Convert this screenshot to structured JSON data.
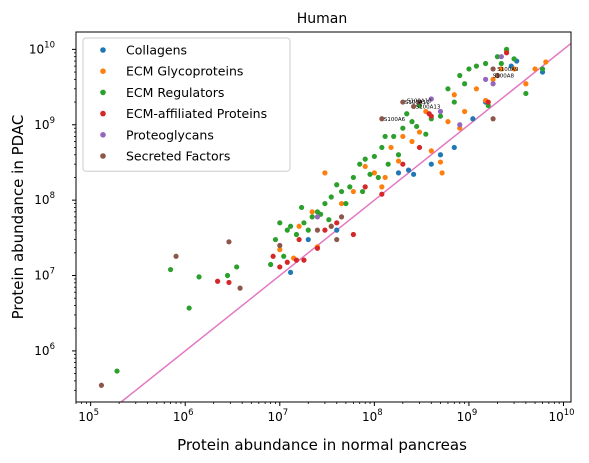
{
  "chart_data": {
    "type": "scatter",
    "title": "Human",
    "xlabel": "Protein abundance in normal pancreas",
    "ylabel": "Protein abundance in PDAC",
    "xscale": "log",
    "yscale": "log",
    "xlim": [
      70000,
      12000000000
    ],
    "ylim": [
      210000,
      17000000000
    ],
    "x_ticks": [
      {
        "value": 100000,
        "base": "10",
        "exp": "5"
      },
      {
        "value": 1000000,
        "base": "10",
        "exp": "6"
      },
      {
        "value": 10000000,
        "base": "10",
        "exp": "7"
      },
      {
        "value": 100000000,
        "base": "10",
        "exp": "8"
      },
      {
        "value": 1000000000,
        "base": "10",
        "exp": "9"
      },
      {
        "value": 10000000000,
        "base": "10",
        "exp": "10"
      }
    ],
    "y_ticks": [
      {
        "value": 1000000,
        "base": "10",
        "exp": "6"
      },
      {
        "value": 10000000,
        "base": "10",
        "exp": "7"
      },
      {
        "value": 100000000,
        "base": "10",
        "exp": "8"
      },
      {
        "value": 1000000000,
        "base": "10",
        "exp": "9"
      },
      {
        "value": 10000000000,
        "base": "10",
        "exp": "10"
      }
    ],
    "grid": false,
    "legend_position": "top-left",
    "reference_line": {
      "type": "y=x",
      "color": "#e377c2"
    },
    "series": [
      {
        "name": "Collagens",
        "color": "#1f77b4",
        "points": [
          [
            13000000,
            11000000
          ],
          [
            20000000,
            30000000
          ],
          [
            40000000,
            40000000
          ],
          [
            180000000,
            230000000
          ],
          [
            230000000,
            250000000
          ],
          [
            500000000,
            400000000
          ],
          [
            700000000,
            500000000
          ],
          [
            1500000000,
            2000000000
          ],
          [
            2800000000,
            6000000000
          ],
          [
            3200000000,
            7000000000
          ],
          [
            6000000000,
            5000000000
          ],
          [
            400000000,
            300000000
          ],
          [
            1100000000,
            1200000000
          ],
          [
            260000000,
            220000000
          ]
        ]
      },
      {
        "name": "ECM Glycoproteins",
        "color": "#ff7f0e",
        "points": [
          [
            10000000,
            22000000
          ],
          [
            14000000,
            17000000
          ],
          [
            22000000,
            70000000
          ],
          [
            25000000,
            24000000
          ],
          [
            30000000,
            230000000
          ],
          [
            35000000,
            45000000
          ],
          [
            60000000,
            130000000
          ],
          [
            80000000,
            280000000
          ],
          [
            100000000,
            230000000
          ],
          [
            130000000,
            200000000
          ],
          [
            150000000,
            500000000
          ],
          [
            180000000,
            330000000
          ],
          [
            200000000,
            700000000
          ],
          [
            300000000,
            800000000
          ],
          [
            400000000,
            450000000
          ],
          [
            500000000,
            320000000
          ],
          [
            520000000,
            230000000
          ],
          [
            700000000,
            2500000000
          ],
          [
            900000000,
            1500000000
          ],
          [
            1200000000,
            3000000000
          ],
          [
            1500000000,
            2100000000
          ],
          [
            1800000000,
            4000000000
          ],
          [
            2000000000,
            4500000000
          ],
          [
            2200000000,
            5500000000
          ],
          [
            2500000000,
            9500000000
          ],
          [
            3000000000,
            5500000000
          ],
          [
            5000000000,
            5500000000
          ],
          [
            6500000000,
            6800000000
          ],
          [
            4000000000,
            3500000000
          ],
          [
            800000000,
            900000000
          ],
          [
            350000000,
            1500000000
          ],
          [
            120000000,
            150000000
          ],
          [
            45000000,
            90000000
          ],
          [
            16000000,
            45000000
          ],
          [
            250000000,
            600000000
          ],
          [
            600000000,
            1100000000
          ]
        ]
      },
      {
        "name": "ECM Regulators",
        "color": "#2ca02c",
        "points": [
          [
            190000,
            540000
          ],
          [
            700000,
            12000000
          ],
          [
            1100000,
            3700000
          ],
          [
            1400000,
            9600000
          ],
          [
            2800000,
            10000000
          ],
          [
            3500000,
            13000000
          ],
          [
            8000000,
            14000000
          ],
          [
            10000000,
            50000000
          ],
          [
            12000000,
            40000000
          ],
          [
            15000000,
            35000000
          ],
          [
            18000000,
            50000000
          ],
          [
            22000000,
            60000000
          ],
          [
            25000000,
            70000000
          ],
          [
            30000000,
            90000000
          ],
          [
            35000000,
            110000000
          ],
          [
            40000000,
            160000000
          ],
          [
            45000000,
            130000000
          ],
          [
            50000000,
            90000000
          ],
          [
            60000000,
            200000000
          ],
          [
            70000000,
            300000000
          ],
          [
            80000000,
            350000000
          ],
          [
            90000000,
            220000000
          ],
          [
            100000000,
            380000000
          ],
          [
            120000000,
            500000000
          ],
          [
            140000000,
            300000000
          ],
          [
            160000000,
            700000000
          ],
          [
            200000000,
            900000000
          ],
          [
            250000000,
            1100000000
          ],
          [
            300000000,
            1800000000
          ],
          [
            400000000,
            1200000000
          ],
          [
            500000000,
            1300000000
          ],
          [
            600000000,
            3000000000
          ],
          [
            800000000,
            4500000000
          ],
          [
            1000000000,
            5500000000
          ],
          [
            1200000000,
            6000000000
          ],
          [
            1500000000,
            6500000000
          ],
          [
            2000000000,
            8000000000
          ],
          [
            2500000000,
            10000000000
          ],
          [
            3000000000,
            7500000000
          ],
          [
            4000000000,
            2600000000
          ],
          [
            6000000000,
            5500000000
          ],
          [
            13000000,
            45000000
          ],
          [
            17000000,
            80000000
          ],
          [
            27000000,
            65000000
          ],
          [
            33000000,
            55000000
          ],
          [
            55000000,
            150000000
          ],
          [
            75000000,
            130000000
          ],
          [
            110000000,
            200000000
          ],
          [
            130000000,
            700000000
          ],
          [
            180000000,
            400000000
          ],
          [
            220000000,
            1400000000
          ],
          [
            280000000,
            950000000
          ],
          [
            350000000,
            750000000
          ],
          [
            700000000,
            2000000000
          ],
          [
            900000000,
            3500000000
          ],
          [
            1600000000,
            1800000000
          ],
          [
            2200000000,
            6500000000
          ],
          [
            9000000,
            30000000
          ],
          [
            11000000,
            18000000
          ],
          [
            20000000,
            40000000
          ]
        ]
      },
      {
        "name": "ECM-affiliated Proteins",
        "color": "#d62728",
        "points": [
          [
            2200000,
            8400000
          ],
          [
            2900000,
            8100000
          ],
          [
            8500000,
            18000000
          ],
          [
            10000000,
            13000000
          ],
          [
            12000000,
            15000000
          ],
          [
            15000000,
            16000000
          ],
          [
            18000000,
            16000000
          ],
          [
            25000000,
            23000000
          ],
          [
            30000000,
            40000000
          ],
          [
            40000000,
            50000000
          ],
          [
            60000000,
            35000000
          ],
          [
            80000000,
            150000000
          ],
          [
            120000000,
            120000000
          ],
          [
            200000000,
            300000000
          ],
          [
            300000000,
            500000000
          ],
          [
            380000000,
            1400000000
          ],
          [
            400000000,
            1300000000
          ],
          [
            1600000000,
            2000000000
          ],
          [
            2500000000,
            9000000000
          ],
          [
            16000000,
            30000000
          ]
        ]
      },
      {
        "name": "Proteoglycans",
        "color": "#9467bd",
        "points": [
          [
            25000000,
            60000000
          ],
          [
            400000000,
            2200000000
          ],
          [
            500000000,
            1500000000
          ],
          [
            1500000000,
            4000000000
          ],
          [
            2200000000,
            8000000000
          ],
          [
            1800000000,
            3500000000
          ],
          [
            800000000,
            1000000000
          ]
        ]
      },
      {
        "name": "Secreted Factors",
        "color": "#8c564b",
        "points": [
          [
            130000,
            350000
          ],
          [
            800000,
            18000000
          ],
          [
            2900000,
            28000000
          ],
          [
            3800000,
            6800000
          ],
          [
            10000000,
            25000000
          ],
          [
            25000000,
            40000000
          ],
          [
            35000000,
            45000000
          ],
          [
            45000000,
            60000000
          ],
          [
            120000000,
            1200000000
          ],
          [
            200000000,
            2000000000
          ],
          [
            260000000,
            1750000000
          ],
          [
            300000000,
            2000000000
          ],
          [
            1800000000,
            5500000000
          ],
          [
            2000000000,
            4500000000
          ],
          [
            1800000000,
            1200000000
          ],
          [
            40000000,
            30000000
          ]
        ]
      }
    ],
    "annotations": [
      {
        "text": "S100A6",
        "x": 120000000,
        "y": 1200000000
      },
      {
        "text": "S100A11",
        "x": 200000000,
        "y": 2000000000
      },
      {
        "text": "S100A10",
        "x": 210000000,
        "y": 2100000000
      },
      {
        "text": "S100A13",
        "x": 260000000,
        "y": 1750000000
      },
      {
        "text": "S100A9",
        "x": 1900000000,
        "y": 5500000000
      },
      {
        "text": "S100A8",
        "x": 1700000000,
        "y": 4500000000
      }
    ]
  }
}
